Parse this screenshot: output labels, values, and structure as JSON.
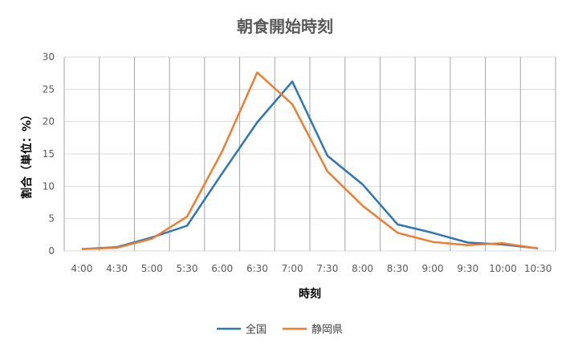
{
  "chart_data": {
    "type": "line",
    "title": "朝食開始時刻",
    "xlabel": "時刻",
    "ylabel": "割合（単位：%）",
    "categories": [
      "4:00",
      "4:30",
      "5:00",
      "5:30",
      "6:00",
      "6:30",
      "7:00",
      "7:30",
      "8:00",
      "8:30",
      "9:00",
      "9:30",
      "10:00",
      "10:30"
    ],
    "ylim": [
      0,
      30
    ],
    "yticks": [
      0,
      5,
      10,
      15,
      20,
      25,
      30
    ],
    "grid": {
      "horizontal": true,
      "vertical": true
    },
    "legend_position": "bottom",
    "series": [
      {
        "name": "全国",
        "color": "#2E75B6",
        "values": [
          0.3,
          0.6,
          2.1,
          3.9,
          12.0,
          19.9,
          26.2,
          14.7,
          10.3,
          4.1,
          2.8,
          1.3,
          1.0,
          0.4
        ]
      },
      {
        "name": "静岡県",
        "color": "#ED7D31",
        "values": [
          0.3,
          0.5,
          1.9,
          5.3,
          15.4,
          27.6,
          22.7,
          12.3,
          7.0,
          2.8,
          1.4,
          0.9,
          1.2,
          0.4
        ]
      }
    ]
  }
}
